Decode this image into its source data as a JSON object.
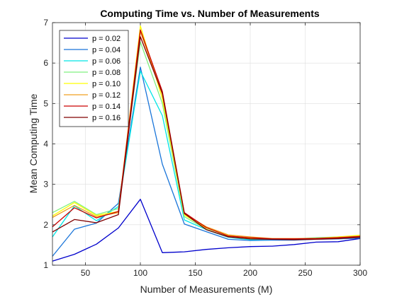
{
  "chart_data": {
    "type": "line",
    "title": "Computing Time vs. Number of Measurements",
    "xlabel": "Number of Measurements (M)",
    "ylabel": "Mean Computing Time",
    "xlim": [
      20,
      300
    ],
    "ylim": [
      1,
      7
    ],
    "xticks": [
      50,
      100,
      150,
      200,
      250,
      300
    ],
    "yticks": [
      1,
      2,
      3,
      4,
      5,
      6,
      7
    ],
    "grid": true,
    "legend_position": "top-left",
    "x": [
      20,
      40,
      60,
      80,
      100,
      120,
      140,
      160,
      180,
      200,
      220,
      240,
      260,
      280,
      300
    ],
    "series": [
      {
        "name": "p = 0.02",
        "color": "#0000cc",
        "values": [
          1.1,
          1.27,
          1.52,
          1.92,
          2.63,
          1.31,
          1.33,
          1.39,
          1.43,
          1.46,
          1.47,
          1.51,
          1.57,
          1.58,
          1.66
        ]
      },
      {
        "name": "p = 0.04",
        "color": "#1a75d9",
        "values": [
          1.22,
          1.89,
          2.04,
          2.53,
          5.9,
          3.5,
          2.02,
          1.83,
          1.64,
          1.61,
          1.62,
          1.62,
          1.64,
          1.65,
          1.67
        ]
      },
      {
        "name": "p = 0.06",
        "color": "#00e5e5",
        "values": [
          1.7,
          2.47,
          2.1,
          2.45,
          5.8,
          4.7,
          2.12,
          1.88,
          1.69,
          1.63,
          1.64,
          1.64,
          1.66,
          1.68,
          1.7
        ]
      },
      {
        "name": "p = 0.08",
        "color": "#80f080",
        "values": [
          2.3,
          2.58,
          2.25,
          2.4,
          6.52,
          5.0,
          2.2,
          1.89,
          1.7,
          1.66,
          1.65,
          1.65,
          1.68,
          1.7,
          1.72
        ]
      },
      {
        "name": "p = 0.10",
        "color": "#ffff00",
        "values": [
          2.22,
          2.55,
          2.23,
          2.33,
          6.92,
          5.12,
          2.24,
          1.92,
          1.73,
          1.67,
          1.65,
          1.65,
          1.66,
          1.7,
          1.74
        ]
      },
      {
        "name": "p = 0.12",
        "color": "#f0a020",
        "values": [
          2.18,
          2.48,
          2.2,
          2.3,
          6.78,
          5.22,
          2.27,
          1.95,
          1.75,
          1.7,
          1.66,
          1.66,
          1.66,
          1.69,
          1.72
        ]
      },
      {
        "name": "p = 0.14",
        "color": "#cc0000",
        "values": [
          1.95,
          2.42,
          2.17,
          2.33,
          6.82,
          5.3,
          2.3,
          1.93,
          1.72,
          1.68,
          1.65,
          1.65,
          1.66,
          1.68,
          1.71
        ]
      },
      {
        "name": "p = 0.16",
        "color": "#800000",
        "values": [
          1.82,
          2.13,
          2.05,
          2.25,
          6.65,
          5.25,
          2.28,
          1.88,
          1.7,
          1.65,
          1.64,
          1.63,
          1.64,
          1.66,
          1.69
        ]
      }
    ]
  }
}
